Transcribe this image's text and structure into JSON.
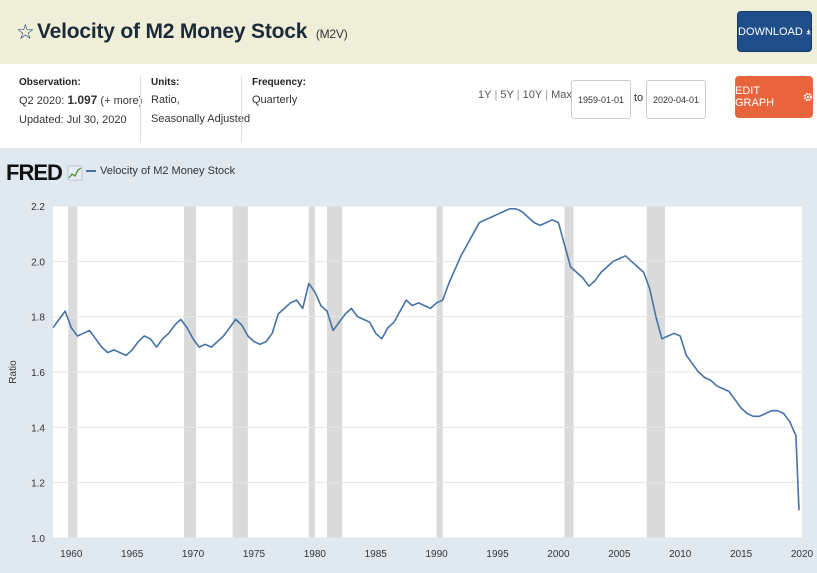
{
  "header": {
    "star_glyph": "☆",
    "title": "Velocity of M2 Money Stock",
    "series_id": "(M2V)",
    "download_label": "DOWNLOAD",
    "download_icon": "download-icon"
  },
  "meta": {
    "observation_label": "Observation:",
    "observation_period": "Q2 2020:",
    "observation_value": "1.097",
    "observation_note": "(+ more)",
    "updated": "Updated: Jul 30, 2020",
    "units_label": "Units:",
    "units_line1": "Ratio,",
    "units_line2": "Seasonally Adjusted",
    "frequency_label": "Frequency:",
    "frequency_value": "Quarterly"
  },
  "controls": {
    "range_1y": "1Y",
    "range_5y": "5Y",
    "range_10y": "10Y",
    "range_max": "Max",
    "sep": "|",
    "start_date": "1959-01-01",
    "to_label": "to",
    "end_date": "2020-04-01",
    "edit_label": "EDIT GRAPH",
    "edit_icon": "gear-icon"
  },
  "brand": {
    "logo_text": "FRED",
    "accent": "#4572a7",
    "recession_color": "#dadada"
  },
  "chart_data": {
    "type": "line",
    "title": "Velocity of M2 Money Stock",
    "legend": [
      "Velocity of M2 Money Stock"
    ],
    "ylabel": "Ratio",
    "xlabel": "",
    "xlim": [
      1959.0,
      2020.5
    ],
    "ylim": [
      1.0,
      2.2
    ],
    "yticks": [
      "1.0",
      "1.2",
      "1.4",
      "1.6",
      "1.8",
      "2.0",
      "2.2"
    ],
    "xticks": [
      "1960",
      "1965",
      "1970",
      "1975",
      "1980",
      "1985",
      "1990",
      "1995",
      "2000",
      "2005",
      "2010",
      "2015",
      "2020"
    ],
    "recessions": [
      [
        1960.25,
        1961.0
      ],
      [
        1969.75,
        1970.75
      ],
      [
        1973.75,
        1975.0
      ],
      [
        1980.0,
        1980.5
      ],
      [
        1981.5,
        1982.75
      ],
      [
        1990.5,
        1991.0
      ],
      [
        2001.0,
        2001.75
      ],
      [
        2007.75,
        2009.25
      ]
    ],
    "series": [
      {
        "name": "Velocity of M2 Money Stock",
        "x": [
          1959.0,
          1959.5,
          1960.0,
          1960.5,
          1961.0,
          1961.5,
          1962.0,
          1962.5,
          1963.0,
          1963.5,
          1964.0,
          1964.5,
          1965.0,
          1965.5,
          1966.0,
          1966.5,
          1967.0,
          1967.5,
          1968.0,
          1968.5,
          1969.0,
          1969.5,
          1970.0,
          1970.5,
          1971.0,
          1971.5,
          1972.0,
          1972.5,
          1973.0,
          1973.5,
          1974.0,
          1974.5,
          1975.0,
          1975.5,
          1976.0,
          1976.5,
          1977.0,
          1977.5,
          1978.0,
          1978.5,
          1979.0,
          1979.5,
          1980.0,
          1980.5,
          1981.0,
          1981.5,
          1982.0,
          1982.5,
          1983.0,
          1983.5,
          1984.0,
          1984.5,
          1985.0,
          1985.5,
          1986.0,
          1986.5,
          1987.0,
          1987.5,
          1988.0,
          1988.5,
          1989.0,
          1989.5,
          1990.0,
          1990.5,
          1991.0,
          1991.5,
          1992.0,
          1992.5,
          1993.0,
          1993.5,
          1994.0,
          1994.5,
          1995.0,
          1995.5,
          1996.0,
          1996.5,
          1997.0,
          1997.5,
          1998.0,
          1998.5,
          1999.0,
          1999.5,
          2000.0,
          2000.5,
          2001.0,
          2001.5,
          2002.0,
          2002.5,
          2003.0,
          2003.5,
          2004.0,
          2004.5,
          2005.0,
          2005.5,
          2006.0,
          2006.5,
          2007.0,
          2007.5,
          2008.0,
          2008.5,
          2009.0,
          2009.5,
          2010.0,
          2010.5,
          2011.0,
          2011.5,
          2012.0,
          2012.5,
          2013.0,
          2013.5,
          2014.0,
          2014.5,
          2015.0,
          2015.5,
          2016.0,
          2016.5,
          2017.0,
          2017.5,
          2018.0,
          2018.5,
          2019.0,
          2019.5,
          2020.0,
          2020.25
        ],
        "values": [
          1.76,
          1.79,
          1.82,
          1.76,
          1.73,
          1.74,
          1.75,
          1.72,
          1.69,
          1.67,
          1.68,
          1.67,
          1.66,
          1.68,
          1.71,
          1.73,
          1.72,
          1.69,
          1.72,
          1.74,
          1.77,
          1.79,
          1.76,
          1.72,
          1.69,
          1.7,
          1.69,
          1.71,
          1.73,
          1.76,
          1.79,
          1.77,
          1.73,
          1.71,
          1.7,
          1.71,
          1.74,
          1.81,
          1.83,
          1.85,
          1.86,
          1.83,
          1.92,
          1.89,
          1.84,
          1.82,
          1.75,
          1.78,
          1.81,
          1.83,
          1.8,
          1.79,
          1.78,
          1.74,
          1.72,
          1.76,
          1.78,
          1.82,
          1.86,
          1.84,
          1.85,
          1.84,
          1.83,
          1.85,
          1.86,
          1.92,
          1.97,
          2.02,
          2.06,
          2.1,
          2.14,
          2.15,
          2.16,
          2.17,
          2.18,
          2.19,
          2.19,
          2.18,
          2.16,
          2.14,
          2.13,
          2.14,
          2.15,
          2.14,
          2.06,
          1.98,
          1.96,
          1.94,
          1.91,
          1.93,
          1.96,
          1.98,
          2.0,
          2.01,
          2.02,
          2.0,
          1.98,
          1.96,
          1.9,
          1.8,
          1.72,
          1.73,
          1.74,
          1.73,
          1.66,
          1.63,
          1.6,
          1.58,
          1.57,
          1.55,
          1.54,
          1.53,
          1.5,
          1.47,
          1.45,
          1.44,
          1.44,
          1.45,
          1.46,
          1.46,
          1.45,
          1.42,
          1.37,
          1.1
        ]
      }
    ]
  }
}
